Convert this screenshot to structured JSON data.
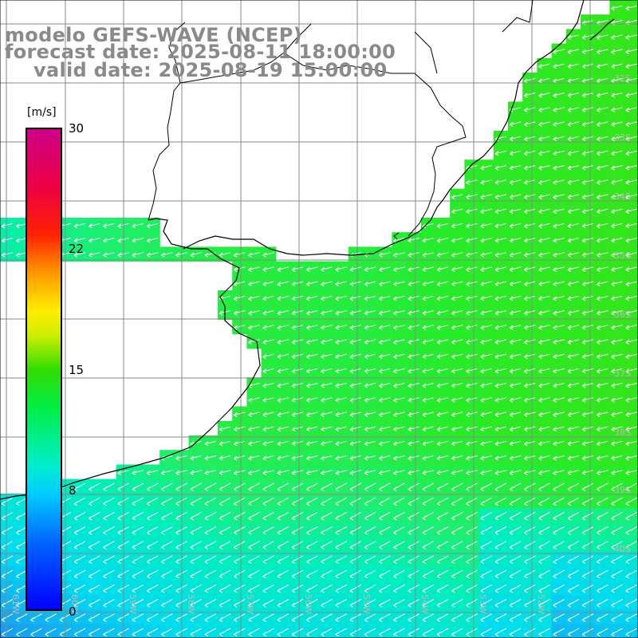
{
  "header": {
    "line1": "modelo GEFS-WAVE (NCEP)",
    "line2": "forecast date: 2025-08-11 18:00:00",
    "line3": "valid date: 2025-08-19 15:00:00"
  },
  "colorbar": {
    "unit": "[m/s]",
    "ticks": [
      "30",
      "22",
      "15",
      "8",
      "0"
    ],
    "min": 0,
    "max": 30
  },
  "lat_labels": [
    "32S",
    "33S",
    "34S",
    "35S",
    "36S",
    "37S",
    "38S",
    "39S",
    "40S"
  ],
  "lon_labels": [
    "61W",
    "60W",
    "59W",
    "58W",
    "57W",
    "56W",
    "55W",
    "54W",
    "53W",
    "52W"
  ],
  "colors": {
    "strong_green": "#22ee22",
    "mid_green": "#33ee66",
    "cyan": "#00eeee",
    "blue": "#22aaee",
    "deep_blue": "#1177ee",
    "land": "#ffffff",
    "grid": "#888888"
  },
  "field": {
    "wind_direction": "from east-northeast",
    "range_ms": [
      6,
      13
    ]
  }
}
